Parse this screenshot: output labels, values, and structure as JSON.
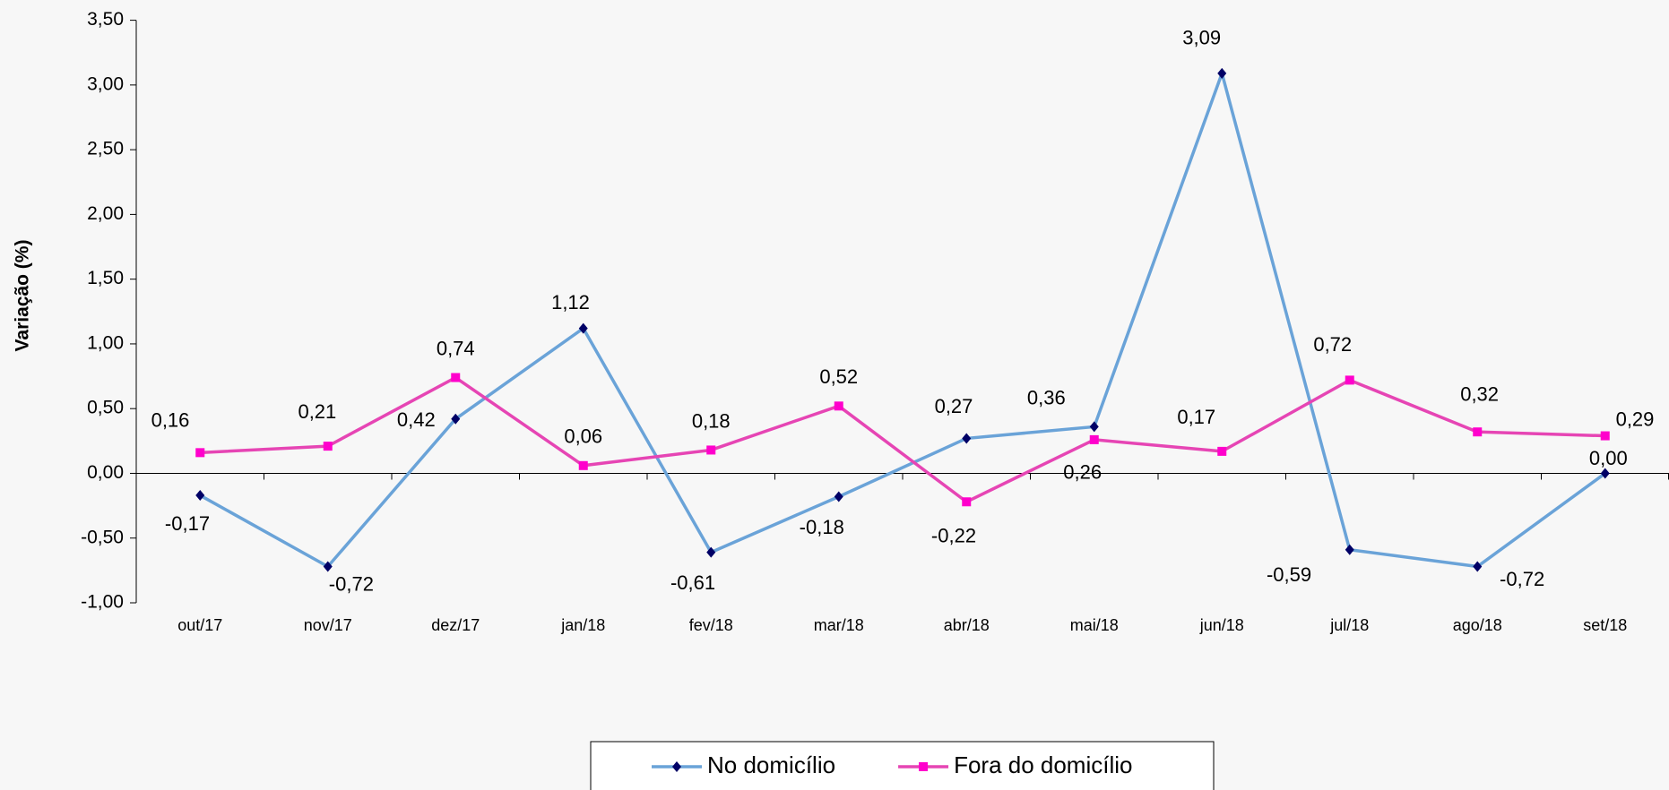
{
  "chart_data": {
    "type": "line",
    "y_label": "Variação (%)",
    "categories": [
      "out/17",
      "nov/17",
      "dez/17",
      "jan/18",
      "fev/18",
      "mar/18",
      "abr/18",
      "mai/18",
      "jun/18",
      "jul/18",
      "ago/18",
      "set/18"
    ],
    "series": [
      {
        "name": "No domicílio",
        "color": "#6aa3d8",
        "marker_color": "#000066",
        "marker": "diamond",
        "values": [
          -0.17,
          -0.72,
          0.42,
          1.12,
          -0.61,
          -0.18,
          0.27,
          0.36,
          3.09,
          -0.59,
          -0.72,
          0.0
        ],
        "value_labels": [
          "-0,17",
          "-0,72",
          "0,42",
          "1,12",
          "-0,61",
          "-0,18",
          "0,27",
          "0,36",
          "3,09",
          "-0,59",
          "-0,72",
          "0,00"
        ]
      },
      {
        "name": "Fora do domicílio",
        "color": "#e645b4",
        "marker_color": "#ff00cc",
        "marker": "square",
        "values": [
          0.16,
          0.21,
          0.74,
          0.06,
          0.18,
          0.52,
          -0.22,
          0.26,
          0.17,
          0.72,
          0.32,
          0.29
        ],
        "value_labels": [
          "0,16",
          "0,21",
          "0,74",
          "0,06",
          "0,18",
          "0,52",
          "-0,22",
          "0,26",
          "0,17",
          "0,72",
          "0,32",
          "0,29"
        ]
      }
    ],
    "ylim": [
      -1.0,
      3.5
    ],
    "yticks": [
      {
        "value": -1.0,
        "label": "-1,00"
      },
      {
        "value": -0.5,
        "label": "-0,50"
      },
      {
        "value": 0,
        "label": "0,00"
      },
      {
        "value": 0.5,
        "label": "0,50"
      },
      {
        "value": 1.0,
        "label": "1,00"
      },
      {
        "value": 1.5,
        "label": "1,50"
      },
      {
        "value": 2.0,
        "label": "2,00"
      },
      {
        "value": 2.5,
        "label": "2,50"
      },
      {
        "value": 3.0,
        "label": "3,00"
      },
      {
        "value": 3.5,
        "label": "3,50"
      }
    ],
    "legend": "bottom"
  }
}
